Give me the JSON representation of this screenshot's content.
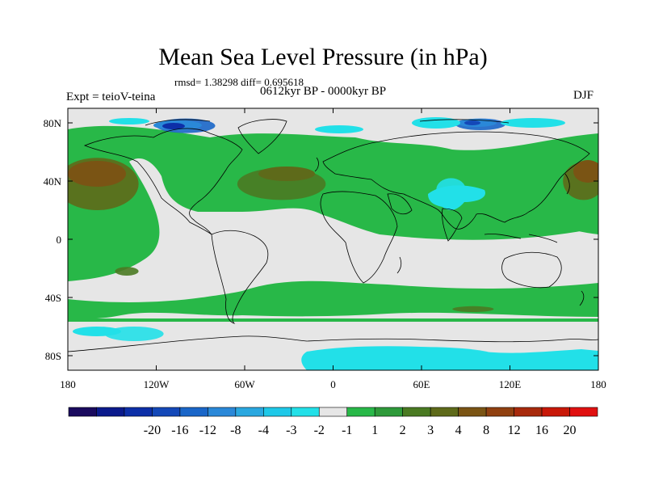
{
  "title": "Mean Sea Level Pressure (in hPa)",
  "stats": "rmsd= 1.38298 diff= 0.695618",
  "experiment": "Expt = teioV-teina",
  "period": "0612kyr BP - 0000kyr BP",
  "season": "DJF",
  "map": {
    "projection": "cylindrical-equidistant",
    "lon_range": [
      -180,
      180
    ],
    "lat_range": [
      -90,
      90
    ],
    "lon_ticks": [
      {
        "value": -180,
        "label": "180"
      },
      {
        "value": -120,
        "label": "120W"
      },
      {
        "value": -60,
        "label": "60W"
      },
      {
        "value": 0,
        "label": "0"
      },
      {
        "value": 60,
        "label": "60E"
      },
      {
        "value": 120,
        "label": "120E"
      },
      {
        "value": 180,
        "label": "180"
      }
    ],
    "lat_ticks": [
      {
        "value": 80,
        "label": "80N"
      },
      {
        "value": 40,
        "label": "40N"
      },
      {
        "value": 0,
        "label": "0"
      },
      {
        "value": -40,
        "label": "40S"
      },
      {
        "value": -80,
        "label": "80S"
      }
    ]
  },
  "colorbar": {
    "colors": [
      "#1a0a5e",
      "#0b1a8c",
      "#0d2fa8",
      "#1448b8",
      "#1a66c8",
      "#2a88d8",
      "#2aa8e0",
      "#1ec8e8",
      "#22e0e8",
      "#e6e6e6",
      "#28b848",
      "#2e9a3a",
      "#4a7a22",
      "#5e6a1a",
      "#7a5414",
      "#904010",
      "#a82a0c",
      "#c81808",
      "#e01010"
    ],
    "labels": [
      "-20",
      "-16",
      "-12",
      "-8",
      "-4",
      "-3",
      "-2",
      "-1",
      "1",
      "2",
      "3",
      "4",
      "8",
      "12",
      "16",
      "20"
    ]
  },
  "regions": [
    {
      "name": "north-pacific-high",
      "level": "4",
      "color": "#5e6a1a",
      "lon": -160,
      "lat": 38,
      "rlon": 28,
      "rlat": 18
    },
    {
      "name": "north-pacific-high-west",
      "level": "4",
      "color": "#5e6a1a",
      "lon": 170,
      "lat": 40,
      "rlon": 14,
      "rlat": 13
    },
    {
      "name": "north-atlantic-high",
      "level": "3",
      "color": "#4a7a22",
      "lon": -35,
      "lat": 38,
      "rlon": 30,
      "rlat": 11
    },
    {
      "name": "south-pacific-patch",
      "level": "3",
      "color": "#4a7a22",
      "lon": -140,
      "lat": -22,
      "rlon": 8,
      "rlat": 3
    },
    {
      "name": "southern-ocean-patch",
      "level": "3",
      "color": "#4a7a22",
      "lon": 95,
      "lat": -48,
      "rlon": 14,
      "rlat": 2
    },
    {
      "name": "tibet-low",
      "level": "-2",
      "color": "#22e0e8",
      "lon": 80,
      "lat": 34,
      "rlon": 10,
      "rlat": 8
    },
    {
      "name": "canada-low",
      "level": "-4",
      "color": "#1a66c8",
      "lon": -100,
      "lat": 78,
      "rlon": 20,
      "rlat": 5
    },
    {
      "name": "siberia-low",
      "level": "-4",
      "color": "#1a66c8",
      "lon": 100,
      "lat": 79,
      "rlon": 17,
      "rlat": 4
    },
    {
      "name": "antarctic-low",
      "level": "-1",
      "color": "#22e0e8",
      "lon": 60,
      "lat": -80,
      "rlon": 50,
      "rlat": 6
    },
    {
      "name": "south-pacific-low",
      "level": "-1",
      "color": "#22e0e8",
      "lon": -135,
      "lat": -65,
      "rlon": 20,
      "rlat": 5
    }
  ]
}
